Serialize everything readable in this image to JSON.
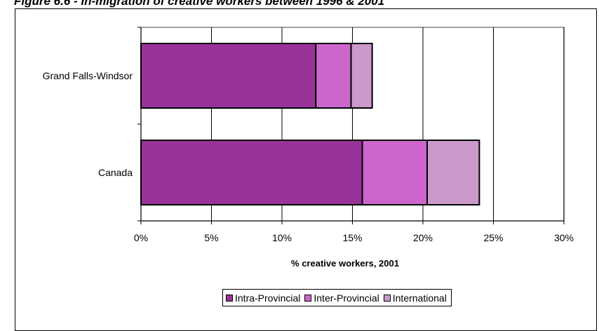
{
  "figure": {
    "title": "Figure 6.6 - In-migration of creative workers between 1996 & 2001"
  },
  "chart_data": {
    "type": "bar",
    "orientation": "horizontal",
    "stacked": true,
    "title": "",
    "categories": [
      "Grand Falls-Windsor",
      "Canada"
    ],
    "series": [
      {
        "name": "Intra-Provincial",
        "values": [
          12.4,
          15.7
        ],
        "color": "#993399"
      },
      {
        "name": "Inter-Provincial",
        "values": [
          2.5,
          4.6
        ],
        "color": "#cc66cc"
      },
      {
        "name": "International",
        "values": [
          1.5,
          3.7
        ],
        "color": "#cc99cc"
      }
    ],
    "xlabel": "% creative workers, 2001",
    "ylabel": "",
    "xlim": [
      0,
      30
    ],
    "x_ticks": [
      "0%",
      "5%",
      "10%",
      "15%",
      "20%",
      "25%",
      "30%"
    ],
    "grid": "vertical",
    "legend_position": "bottom"
  }
}
